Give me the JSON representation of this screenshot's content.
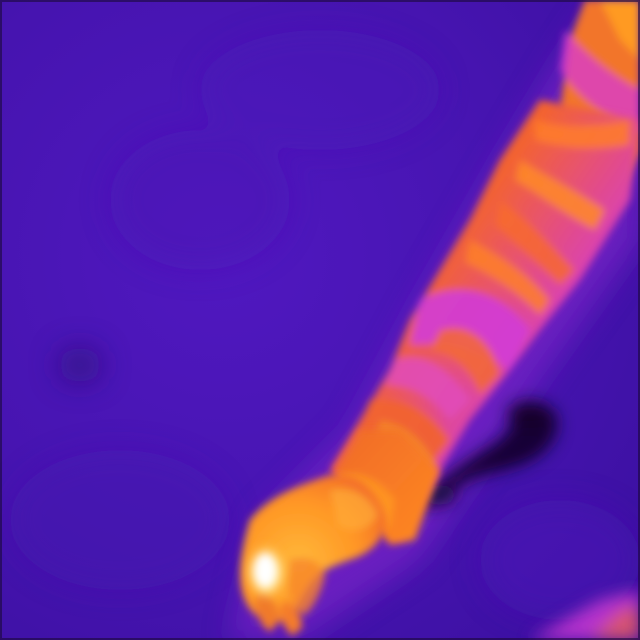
{
  "image": {
    "kind": "thermal-camera-frame",
    "palette": "ironbow",
    "subject": "arm-reaching-down",
    "colors": {
      "background_cold": "#4b16b8",
      "background_dark": "#3a10a0",
      "shadow": "#1a0840",
      "warm_magenta": "#d23cd6",
      "warm_orange": "#f46a2e",
      "hot_orange": "#ff9a24",
      "hottest": "#fff6c0"
    }
  }
}
